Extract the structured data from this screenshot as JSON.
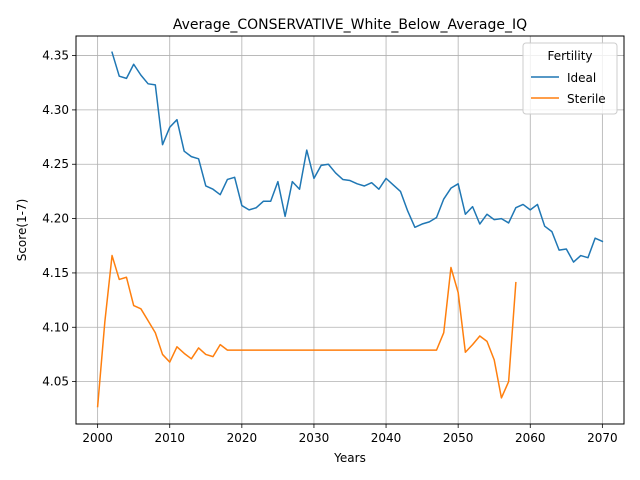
{
  "chart_data": {
    "type": "line",
    "title": "Average_CONSERVATIVE_White_Below_Average_IQ",
    "xlabel": "Years",
    "ylabel": "Score(1-7)",
    "xlim": [
      1997,
      2073
    ],
    "ylim": [
      4.011,
      4.368
    ],
    "xticks": [
      2000,
      2010,
      2020,
      2030,
      2040,
      2050,
      2060,
      2070
    ],
    "yticks": [
      4.05,
      4.1,
      4.15,
      4.2,
      4.25,
      4.3,
      4.35
    ],
    "ytick_labels": [
      "4.05",
      "4.10",
      "4.15",
      "4.20",
      "4.25",
      "4.30",
      "4.35"
    ],
    "grid": true,
    "legend": {
      "title": "Fertility",
      "placement": "top-right"
    },
    "series": [
      {
        "name": "Ideal",
        "color": "#1f77b4",
        "x": [
          2002,
          2003,
          2004,
          2005,
          2006,
          2007,
          2008,
          2009,
          2010,
          2011,
          2012,
          2013,
          2014,
          2015,
          2016,
          2017,
          2018,
          2019,
          2020,
          2021,
          2022,
          2023,
          2024,
          2025,
          2026,
          2027,
          2028,
          2029,
          2030,
          2031,
          2032,
          2033,
          2034,
          2035,
          2036,
          2037,
          2038,
          2039,
          2040,
          2041,
          2042,
          2043,
          2044,
          2045,
          2046,
          2047,
          2048,
          2049,
          2050,
          2051,
          2052,
          2053,
          2054,
          2055,
          2056,
          2057,
          2058,
          2059,
          2060,
          2061,
          2062,
          2063,
          2064,
          2065,
          2066,
          2067,
          2068,
          2069,
          2070
        ],
        "y": [
          4.353,
          4.331,
          4.329,
          4.342,
          4.332,
          4.324,
          4.323,
          4.268,
          4.284,
          4.291,
          4.262,
          4.257,
          4.255,
          4.23,
          4.227,
          4.222,
          4.236,
          4.238,
          4.212,
          4.208,
          4.21,
          4.216,
          4.216,
          4.234,
          4.202,
          4.234,
          4.227,
          4.263,
          4.237,
          4.249,
          4.25,
          4.242,
          4.236,
          4.235,
          4.232,
          4.23,
          4.233,
          4.227,
          4.237,
          4.231,
          4.225,
          4.207,
          4.192,
          4.195,
          4.197,
          4.201,
          4.218,
          4.228,
          4.232,
          4.204,
          4.211,
          4.195,
          4.204,
          4.199,
          4.2,
          4.196,
          4.21,
          4.213,
          4.208,
          4.213,
          4.193,
          4.188,
          4.171,
          4.172,
          4.16,
          4.166,
          4.164,
          4.182,
          4.179
        ]
      },
      {
        "name": "Sterile",
        "color": "#ff7f0e",
        "x": [
          2000,
          2001,
          2002,
          2003,
          2004,
          2005,
          2006,
          2007,
          2008,
          2009,
          2010,
          2011,
          2012,
          2013,
          2014,
          2015,
          2016,
          2017,
          2018,
          2019,
          2020,
          2021,
          2022,
          2023,
          2024,
          2025,
          2026,
          2027,
          2028,
          2029,
          2030,
          2031,
          2032,
          2033,
          2034,
          2035,
          2036,
          2037,
          2038,
          2039,
          2040,
          2041,
          2042,
          2043,
          2044,
          2045,
          2046,
          2047,
          2048,
          2049,
          2050,
          2051,
          2052,
          2053,
          2054,
          2055,
          2056,
          2057,
          2058
        ],
        "y": [
          4.027,
          4.105,
          4.166,
          4.144,
          4.146,
          4.12,
          4.117,
          4.106,
          4.095,
          4.075,
          4.068,
          4.082,
          4.076,
          4.071,
          4.081,
          4.075,
          4.073,
          4.084,
          4.079,
          4.079,
          4.079,
          4.079,
          4.079,
          4.079,
          4.079,
          4.079,
          4.079,
          4.079,
          4.079,
          4.079,
          4.079,
          4.079,
          4.079,
          4.079,
          4.079,
          4.079,
          4.079,
          4.079,
          4.079,
          4.079,
          4.079,
          4.079,
          4.079,
          4.079,
          4.079,
          4.079,
          4.079,
          4.079,
          4.095,
          4.155,
          4.132,
          4.077,
          4.084,
          4.092,
          4.087,
          4.07,
          4.035,
          4.05,
          4.141
        ]
      }
    ]
  }
}
